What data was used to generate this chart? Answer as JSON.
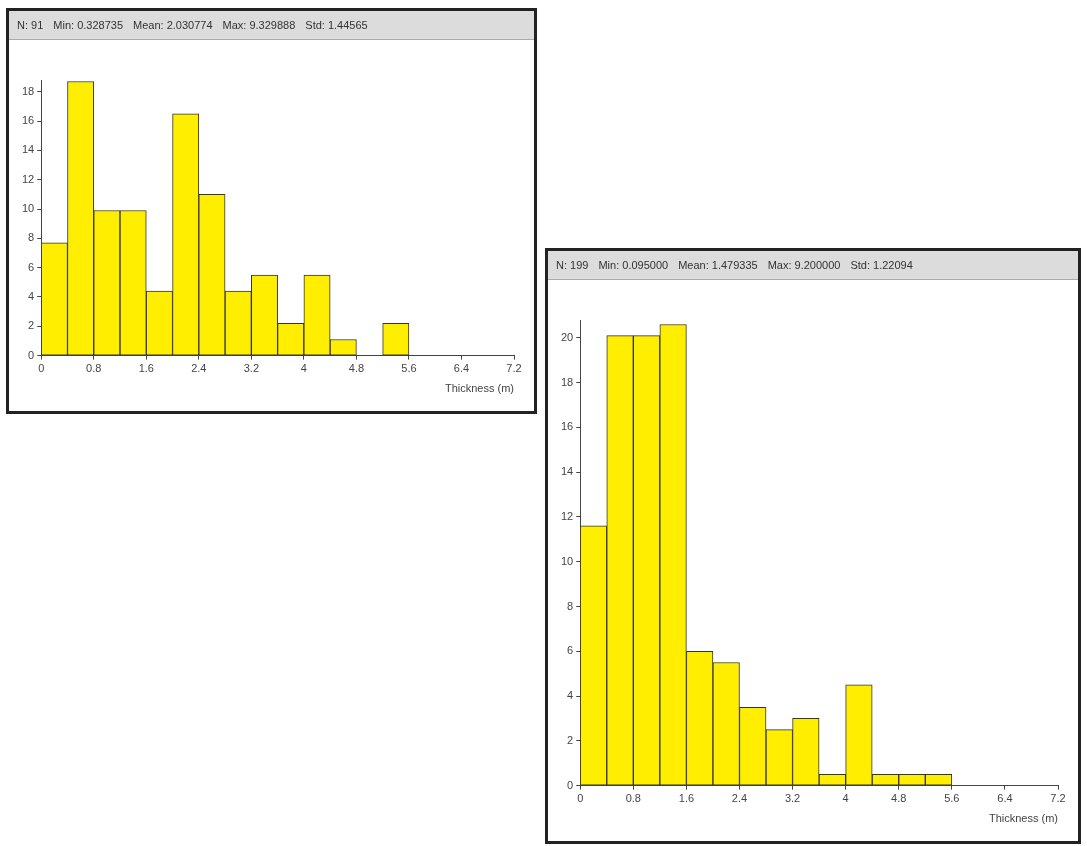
{
  "chart_data": [
    {
      "type": "histogram",
      "annotations": [
        "N: 91",
        "Min: 0.328735",
        "Mean: 2.030774",
        "Max: 9.329888",
        "Std: 1.44565"
      ],
      "xlabel": "Thickness (m)",
      "bins": [
        0,
        0.4,
        0.8,
        1.2,
        1.6,
        2.0,
        2.4,
        2.8,
        3.2,
        3.6,
        4.0,
        4.4,
        4.8,
        5.2,
        5.6
      ],
      "values": [
        7.7,
        18.7,
        9.9,
        9.9,
        4.4,
        16.5,
        11.0,
        4.4,
        5.5,
        2.2,
        5.5,
        1.1,
        0,
        2.2
      ],
      "color": "#ffee00",
      "xlim": [
        0,
        7.2
      ],
      "xticks": [
        0,
        0.8,
        1.6,
        2.4,
        3.2,
        4,
        4.8,
        5.6,
        6.4,
        7.2
      ],
      "ylim": [
        0,
        18.8
      ],
      "yticks": [
        0,
        2,
        4,
        6,
        8,
        10,
        12,
        14,
        16,
        18
      ],
      "grid": false,
      "legend": false
    },
    {
      "type": "histogram",
      "annotations": [
        "N: 199",
        "Min: 0.095000",
        "Mean: 1.479335",
        "Max: 9.200000",
        "Std: 1.22094"
      ],
      "xlabel": "Thickness (m)",
      "bins": [
        0,
        0.4,
        0.8,
        1.2,
        1.6,
        2.0,
        2.4,
        2.8,
        3.2,
        3.6,
        4.0,
        4.4,
        4.8,
        5.2,
        5.6
      ],
      "values": [
        11.6,
        20.1,
        20.1,
        20.6,
        6.0,
        5.5,
        3.5,
        2.5,
        3.0,
        0.5,
        4.5,
        0.5,
        0.5,
        0.5
      ],
      "color": "#ffee00",
      "xlim": [
        0,
        7.2
      ],
      "xticks": [
        0,
        0.8,
        1.6,
        2.4,
        3.2,
        4,
        4.8,
        5.6,
        6.4,
        7.2
      ],
      "ylim": [
        0,
        20.8
      ],
      "yticks": [
        0,
        2,
        4,
        6,
        8,
        10,
        12,
        14,
        16,
        18,
        20
      ],
      "grid": false,
      "legend": false
    }
  ]
}
